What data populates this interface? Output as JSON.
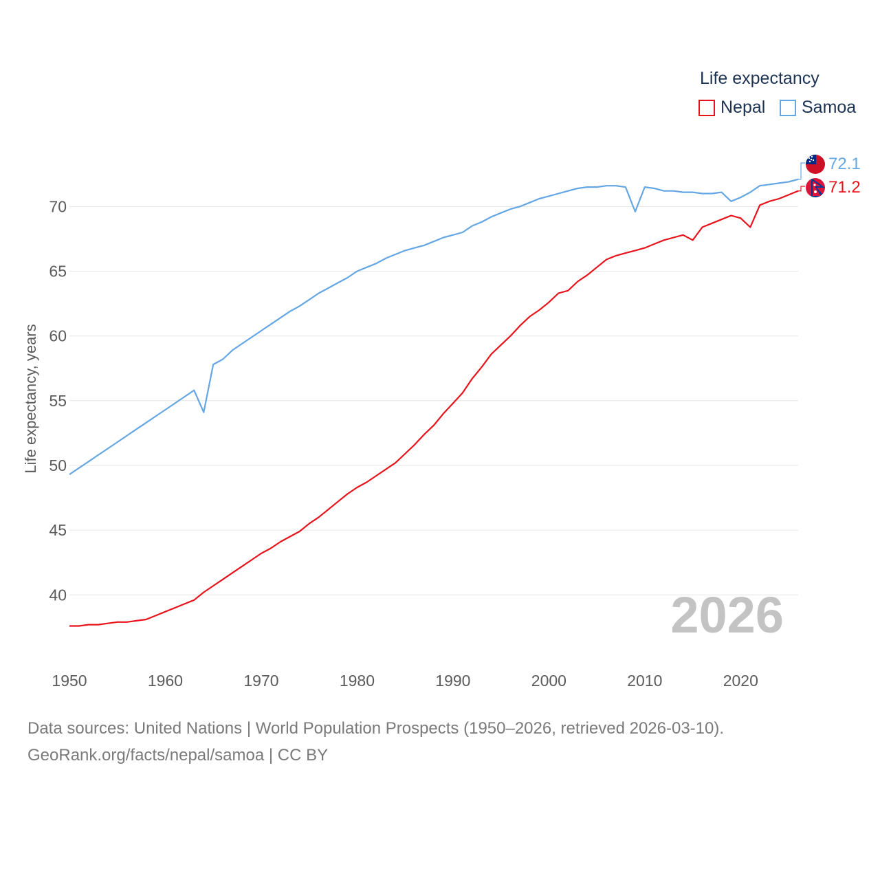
{
  "legend": {
    "title": "Life expectancy",
    "items": [
      {
        "label": "Nepal",
        "color": "#e8121a"
      },
      {
        "label": "Samoa",
        "color": "#64a6e4"
      }
    ]
  },
  "footer": {
    "line1": "Data sources: United Nations | World Population Prospects (1950–2026, retrieved 2026-03-10).",
    "line2": "GeoRank.org/facts/nepal/samoa | CC BY"
  },
  "chart_data": {
    "type": "line",
    "title": "",
    "xlabel": "",
    "ylabel": "Life expectancy, years",
    "year_watermark": "2026",
    "xlim": [
      1950,
      2026
    ],
    "ylim": [
      35.5,
      74
    ],
    "x_ticks": [
      "1950",
      "1960",
      "1970",
      "1980",
      "1990",
      "2000",
      "2010",
      "2020"
    ],
    "y_ticks": [
      "40",
      "45",
      "50",
      "55",
      "60",
      "65",
      "70"
    ],
    "grid": true,
    "legend_position": "top-right",
    "end_labels": [
      {
        "series": "Samoa",
        "value": "72.1",
        "flag": "samoa-flag"
      },
      {
        "series": "Nepal",
        "value": "71.2",
        "flag": "nepal-flag"
      }
    ],
    "series": [
      {
        "name": "Nepal",
        "color": "#e8121a",
        "x": [
          1950,
          1951,
          1952,
          1953,
          1954,
          1955,
          1956,
          1957,
          1958,
          1959,
          1960,
          1961,
          1962,
          1963,
          1964,
          1965,
          1966,
          1967,
          1968,
          1969,
          1970,
          1971,
          1972,
          1973,
          1974,
          1975,
          1976,
          1977,
          1978,
          1979,
          1980,
          1981,
          1982,
          1983,
          1984,
          1985,
          1986,
          1987,
          1988,
          1989,
          1990,
          1991,
          1992,
          1993,
          1994,
          1995,
          1996,
          1997,
          1998,
          1999,
          2000,
          2001,
          2002,
          2003,
          2004,
          2005,
          2006,
          2007,
          2008,
          2009,
          2010,
          2011,
          2012,
          2013,
          2014,
          2015,
          2016,
          2017,
          2018,
          2019,
          2020,
          2021,
          2022,
          2023,
          2024,
          2025,
          2026
        ],
        "values": [
          37.6,
          37.6,
          37.7,
          37.7,
          37.8,
          37.9,
          37.9,
          38.0,
          38.1,
          38.4,
          38.7,
          39.0,
          39.3,
          39.6,
          40.2,
          40.7,
          41.2,
          41.7,
          42.2,
          42.7,
          43.2,
          43.6,
          44.1,
          44.5,
          44.9,
          45.5,
          46.0,
          46.6,
          47.2,
          47.8,
          48.3,
          48.7,
          49.2,
          49.7,
          50.2,
          50.9,
          51.6,
          52.4,
          53.1,
          54.0,
          54.8,
          55.6,
          56.7,
          57.6,
          58.6,
          59.3,
          60.0,
          60.8,
          61.5,
          62.0,
          62.6,
          63.3,
          63.5,
          64.2,
          64.7,
          65.3,
          65.9,
          66.2,
          66.4,
          66.6,
          66.8,
          67.1,
          67.4,
          67.6,
          67.8,
          67.4,
          68.4,
          68.7,
          69.0,
          69.3,
          69.1,
          68.4,
          70.1,
          70.4,
          70.6,
          70.9,
          71.2
        ]
      },
      {
        "name": "Samoa",
        "color": "#64a6e4",
        "x": [
          1950,
          1951,
          1952,
          1953,
          1954,
          1955,
          1956,
          1957,
          1958,
          1959,
          1960,
          1961,
          1962,
          1963,
          1964,
          1965,
          1966,
          1967,
          1968,
          1969,
          1970,
          1971,
          1972,
          1973,
          1974,
          1975,
          1976,
          1977,
          1978,
          1979,
          1980,
          1981,
          1982,
          1983,
          1984,
          1985,
          1986,
          1987,
          1988,
          1989,
          1990,
          1991,
          1992,
          1993,
          1994,
          1995,
          1996,
          1997,
          1998,
          1999,
          2000,
          2001,
          2002,
          2003,
          2004,
          2005,
          2006,
          2007,
          2008,
          2009,
          2010,
          2011,
          2012,
          2013,
          2014,
          2015,
          2016,
          2017,
          2018,
          2019,
          2020,
          2021,
          2022,
          2023,
          2024,
          2025,
          2026
        ],
        "values": [
          49.3,
          49.8,
          50.3,
          50.8,
          51.3,
          51.8,
          52.3,
          52.8,
          53.3,
          53.8,
          54.3,
          54.8,
          55.3,
          55.8,
          54.1,
          57.8,
          58.2,
          58.9,
          59.4,
          59.9,
          60.4,
          60.9,
          61.4,
          61.9,
          62.3,
          62.8,
          63.3,
          63.7,
          64.1,
          64.5,
          65.0,
          65.3,
          65.6,
          66.0,
          66.3,
          66.6,
          66.8,
          67.0,
          67.3,
          67.6,
          67.8,
          68.0,
          68.5,
          68.8,
          69.2,
          69.5,
          69.8,
          70.0,
          70.3,
          70.6,
          70.8,
          71.0,
          71.2,
          71.4,
          71.5,
          71.5,
          71.6,
          71.6,
          71.5,
          69.6,
          71.5,
          71.4,
          71.2,
          71.2,
          71.1,
          71.1,
          71.0,
          71.0,
          71.1,
          70.4,
          70.7,
          71.1,
          71.6,
          71.7,
          71.8,
          71.9,
          72.1
        ]
      }
    ]
  }
}
